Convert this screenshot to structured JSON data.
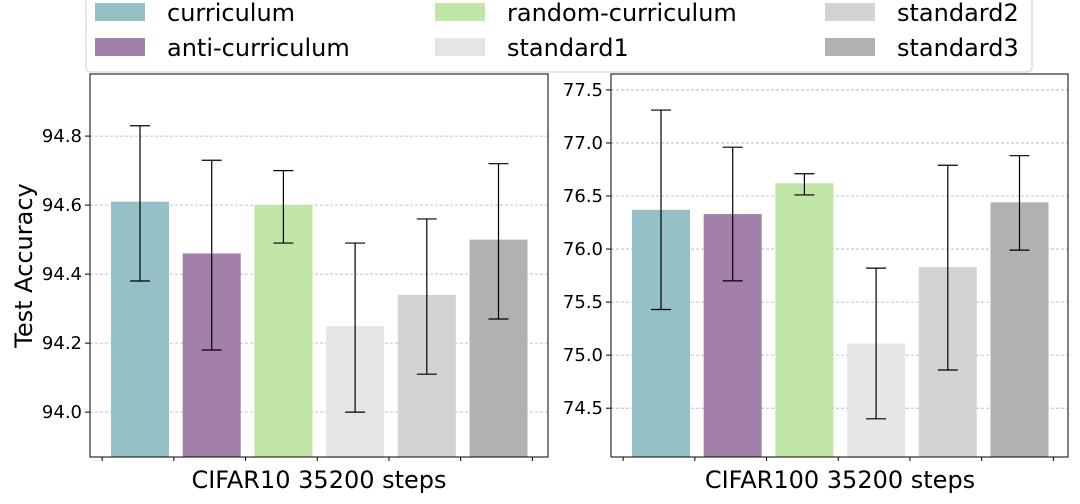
{
  "legend": {
    "entries": [
      {
        "label": "curriculum",
        "color": "#94c0c6"
      },
      {
        "label": "anti-curriculum",
        "color": "#a181a9"
      },
      {
        "label": "random-curriculum",
        "color": "#bfe6a6"
      },
      {
        "label": "standard1",
        "color": "#e6e6e6"
      },
      {
        "label": "standard2",
        "color": "#d3d3d3"
      },
      {
        "label": "standard3",
        "color": "#b1b1b1"
      }
    ]
  },
  "chart_data": [
    {
      "type": "bar",
      "xlabel": "CIFAR10 35200 steps",
      "ylabel": "Test Accuracy",
      "categories": [
        "curriculum",
        "anti-curriculum",
        "random-curriculum",
        "standard1",
        "standard2",
        "standard3"
      ],
      "values": [
        94.61,
        94.46,
        94.6,
        94.25,
        94.34,
        94.5
      ],
      "err_low": [
        94.38,
        94.18,
        94.49,
        94.0,
        94.11,
        94.27
      ],
      "err_high": [
        94.83,
        94.73,
        94.7,
        94.49,
        94.56,
        94.72
      ],
      "ylim": [
        93.87,
        94.98
      ],
      "yticks": [
        94.0,
        94.2,
        94.4,
        94.6,
        94.8
      ],
      "ytick_labels": [
        "94.0",
        "94.2",
        "94.4",
        "94.6",
        "94.8"
      ],
      "grid": true
    },
    {
      "type": "bar",
      "xlabel": "CIFAR100 35200 steps",
      "ylabel": "",
      "categories": [
        "curriculum",
        "anti-curriculum",
        "random-curriculum",
        "standard1",
        "standard2",
        "standard3"
      ],
      "values": [
        76.37,
        76.33,
        76.62,
        75.11,
        75.83,
        76.44
      ],
      "err_low": [
        75.43,
        75.7,
        76.51,
        74.4,
        74.86,
        75.99
      ],
      "err_high": [
        77.31,
        76.96,
        76.71,
        75.82,
        76.79,
        76.88
      ],
      "ylim": [
        74.04,
        77.65
      ],
      "yticks": [
        74.5,
        75.0,
        75.5,
        76.0,
        76.5,
        77.0,
        77.5
      ],
      "ytick_labels": [
        "74.5",
        "75.0",
        "75.5",
        "76.0",
        "76.5",
        "77.0",
        "77.5"
      ],
      "grid": true
    }
  ]
}
